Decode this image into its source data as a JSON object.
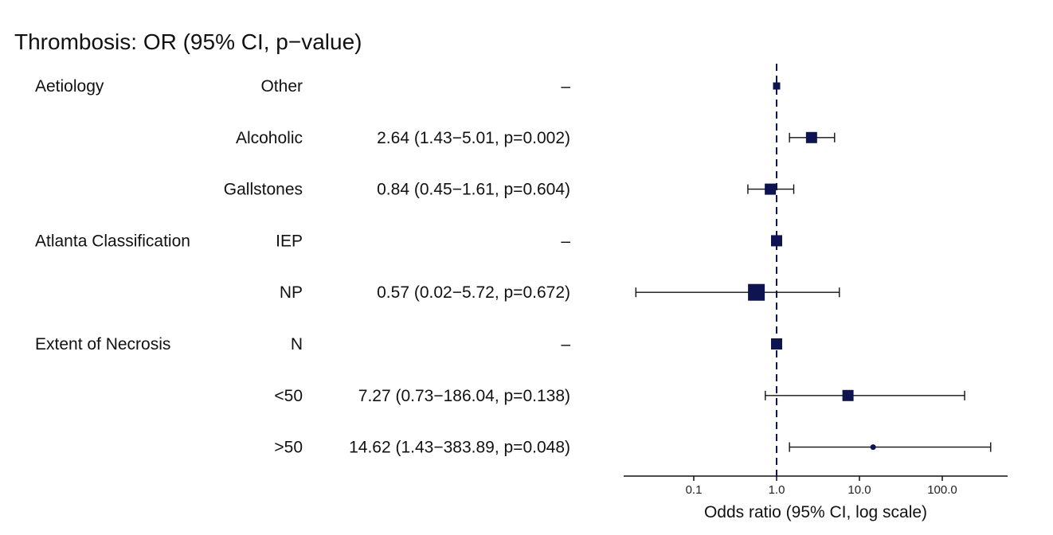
{
  "chart_data": {
    "type": "forest",
    "title": "Thrombosis: OR (95% CI, p−value)",
    "xlabel": "Odds ratio (95% CI, log scale)",
    "x_scale": "log",
    "reference_line": 1.0,
    "x_ticks": [
      {
        "value": 0.1,
        "label": "0.1"
      },
      {
        "value": 1.0,
        "label": "1.0"
      },
      {
        "value": 10.0,
        "label": "10.0"
      },
      {
        "value": 100.0,
        "label": "100.0"
      }
    ],
    "rows": [
      {
        "variable": "Aetiology",
        "level": "Other",
        "text": "–",
        "or": 1.0,
        "lower": null,
        "upper": null,
        "marker": "small"
      },
      {
        "variable": "",
        "level": "Alcoholic",
        "text": "2.64 (1.43−5.01, p=0.002)",
        "or": 2.64,
        "lower": 1.43,
        "upper": 5.01,
        "marker": "medium"
      },
      {
        "variable": "",
        "level": "Gallstones",
        "text": "0.84 (0.45−1.61, p=0.604)",
        "or": 0.84,
        "lower": 0.45,
        "upper": 1.61,
        "marker": "medium"
      },
      {
        "variable": "Atlanta Classification",
        "level": "IEP",
        "text": "–",
        "or": 1.0,
        "lower": null,
        "upper": null,
        "marker": "medium"
      },
      {
        "variable": "",
        "level": "NP",
        "text": "0.57 (0.02−5.72, p=0.672)",
        "or": 0.57,
        "lower": 0.02,
        "upper": 5.72,
        "marker": "large"
      },
      {
        "variable": "Extent of Necrosis",
        "level": "N",
        "text": "–",
        "or": 1.0,
        "lower": null,
        "upper": null,
        "marker": "medium"
      },
      {
        "variable": "",
        "level": "<50",
        "text": "7.27 (0.73−186.04, p=0.138)",
        "or": 7.27,
        "lower": 0.73,
        "upper": 186.04,
        "marker": "medium"
      },
      {
        "variable": "",
        "level": ">50",
        "text": "14.62 (1.43−383.89, p=0.048)",
        "or": 14.62,
        "lower": 1.43,
        "upper": 383.89,
        "marker": "tiny"
      }
    ],
    "colors": {
      "marker": "#0d1450",
      "line": "#111111"
    }
  }
}
